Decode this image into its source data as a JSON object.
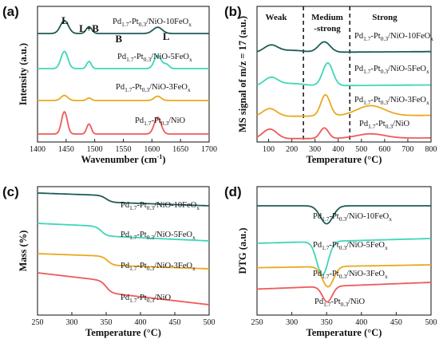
{
  "chart_data": [
    {
      "panel_label": "(a)",
      "type": "line",
      "xlabel": "Wavenumber (cm",
      "xlabel_sup": "-1",
      "xlabel_tail": ")",
      "ylabel": "Intensity (a.u.)",
      "xlim": [
        1400,
        1700
      ],
      "xticks": [
        "1400",
        "1450",
        "1500",
        "1550",
        "1600",
        "1650",
        "1700"
      ],
      "band_labels": [
        {
          "text": "L",
          "x": 1448
        },
        {
          "text": "L+B",
          "x": 1490
        },
        {
          "text": "B",
          "x": 1542
        },
        {
          "text": "L",
          "x": 1625
        }
      ],
      "series": [
        {
          "name": "Pd1.7-Pt0.3/NiO-10FeOx",
          "label_main": "Pd",
          "label_parts": [
            "Pd",
            "1.7",
            "-Pt",
            "0.3",
            "/NiO-10FeO",
            "x"
          ],
          "color": "#1d5c57",
          "peaks": [
            [
              1447,
              0.62,
              7
            ],
            [
              1490,
              0.32,
              5
            ],
            [
              1610,
              0.3,
              8
            ]
          ]
        },
        {
          "name": "Pd1.7-Pt0.3/NiO-5FeOx",
          "label_parts": [
            "Pd",
            "1.7",
            "-Pt",
            "0.3",
            "/NiO-5FeO",
            "x"
          ],
          "color": "#3fd6b8",
          "peaks": [
            [
              1447,
              0.72,
              6
            ],
            [
              1490,
              0.3,
              4
            ],
            [
              1610,
              0.55,
              6
            ],
            [
              1625,
              0.18,
              5
            ]
          ]
        },
        {
          "name": "Pd1.7-Pt0.3/NiO-3FeOx",
          "label_parts": [
            "Pd",
            "1.7",
            "-Pt",
            "0.3",
            "/NiO-3FeO",
            "x"
          ],
          "color": "#e9a91e",
          "peaks": [
            [
              1447,
              0.35,
              6
            ],
            [
              1490,
              0.18,
              4
            ],
            [
              1610,
              0.3,
              6
            ]
          ]
        },
        {
          "name": "Pd1.7-Pt0.3/NiO",
          "label_parts": [
            "Pd",
            "1.7",
            "-Pt",
            "0.3",
            "/NiO",
            ""
          ],
          "color": "#ef5a5a",
          "peaks": [
            [
              1447,
              1.0,
              5
            ],
            [
              1490,
              0.45,
              4
            ],
            [
              1610,
              0.75,
              6
            ]
          ]
        }
      ]
    },
    {
      "panel_label": "(b)",
      "type": "line",
      "xlabel": "Temperature (°C)",
      "ylabel": "MS signal of m/z = 17 (a.u.)",
      "xlim": [
        50,
        800
      ],
      "xticks": [
        "100",
        "200",
        "300",
        "400",
        "500",
        "600",
        "700",
        "800"
      ],
      "regions": [
        "Weak",
        "Medium",
        "-strong",
        "Strong"
      ],
      "region_bounds": [
        250,
        450
      ],
      "series": [
        {
          "name": "Pd1.7-Pt0.3/NiO-10FeOx",
          "label_parts": [
            "Pd",
            "1.7",
            "-Pt",
            "0.3",
            "/NiO-10FeO",
            "x"
          ],
          "color": "#1d5c57",
          "peaks": [
            [
              110,
              0.35,
              30
            ],
            [
              340,
              0.5,
              25
            ],
            [
              200,
              0.1,
              50
            ]
          ]
        },
        {
          "name": "Pd1.7-Pt0.3/NiO-5FeOx",
          "label_parts": [
            "Pd",
            "1.7",
            "-Pt",
            "0.3",
            "/NiO-5FeO",
            "x"
          ],
          "color": "#3fd6b8",
          "peaks": [
            [
              110,
              0.35,
              30
            ],
            [
              355,
              0.95,
              22
            ],
            [
              200,
              0.1,
              50
            ]
          ]
        },
        {
          "name": "Pd1.7-Pt0.3/NiO-3FeOx",
          "label_parts": [
            "Pd",
            "1.7",
            "-Pt",
            "0.3",
            "/NiO-3FeO",
            "x"
          ],
          "color": "#e9a91e",
          "peaks": [
            [
              105,
              0.35,
              30
            ],
            [
              345,
              0.95,
              20
            ],
            [
              540,
              0.45,
              60
            ]
          ]
        },
        {
          "name": "Pd1.7-Pt0.3/NiO",
          "label_parts": [
            "Pd",
            "1.7",
            "-Pt",
            "0.3",
            "/NiO",
            ""
          ],
          "color": "#ef5a5a",
          "peaks": [
            [
              105,
              0.55,
              30
            ],
            [
              340,
              0.6,
              18
            ],
            [
              540,
              0.25,
              60
            ]
          ]
        }
      ]
    },
    {
      "panel_label": "(c)",
      "type": "line",
      "xlabel": "Temperature (°C)",
      "ylabel": "Mass (%)",
      "xlim": [
        250,
        500
      ],
      "xticks": [
        "250",
        "300",
        "350",
        "400",
        "450",
        "500"
      ],
      "series": [
        {
          "name": "Pd1.7-Pt0.3/NiO-10FeOx",
          "label_parts": [
            "Pd",
            "1.7",
            "-Pt",
            "0.3",
            "/NiO-10FeO",
            "x"
          ],
          "color": "#1d5c57",
          "start": 1.0,
          "slope": 0.22,
          "step": 0.25,
          "step_at": 350
        },
        {
          "name": "Pd1.7-Pt0.3/NiO-5FeOx",
          "label_parts": [
            "Pd",
            "1.7",
            "-Pt",
            "0.3",
            "/NiO-5FeO",
            "x"
          ],
          "color": "#3fd6b8",
          "start": 1.0,
          "slope": 0.25,
          "step": 0.3,
          "step_at": 343
        },
        {
          "name": "Pd1.7-Pt0.3/NiO-3FeOx",
          "label_parts": [
            "Pd",
            "1.7",
            "-Pt",
            "0.3",
            "/NiO-3FeO",
            "x"
          ],
          "color": "#e9a91e",
          "start": 1.0,
          "slope": 0.2,
          "step": 0.3,
          "step_at": 352
        },
        {
          "name": "Pd1.7-Pt0.3/NiO",
          "label_parts": [
            "Pd",
            "1.7",
            "-Pt",
            "0.3",
            "/NiO",
            ""
          ],
          "color": "#ef5a5a",
          "start": 1.0,
          "slope": 0.5,
          "step": 0.3,
          "step_at": 350
        }
      ]
    },
    {
      "panel_label": "(d)",
      "type": "line",
      "xlabel": "Temperature (°C)",
      "ylabel": "DTG (a.u.)",
      "xlim": [
        250,
        500
      ],
      "xticks": [
        "250",
        "300",
        "350",
        "400",
        "450",
        "500"
      ],
      "series": [
        {
          "name": "Pd1.7-Pt0.3/NiO-10FeOx",
          "label_parts": [
            "Pd",
            "1.7",
            "-Pt",
            "0.3",
            "/NiO-10FeO",
            "x"
          ],
          "color": "#1d5c57",
          "dip_at": 350,
          "dip": 0.75,
          "width": 9
        },
        {
          "name": "Pd1.7-Pt0.3/NiO-5FeOx",
          "label_parts": [
            "Pd",
            "1.7",
            "-Pt",
            "0.3",
            "/NiO-5FeO",
            "x"
          ],
          "color": "#3fd6b8",
          "dip_at": 344,
          "dip": 1.0,
          "width": 8
        },
        {
          "name": "Pd1.7-Pt0.3/NiO-3FeOx",
          "label_parts": [
            "Pd",
            "1.7",
            "-Pt",
            "0.3",
            "/NiO-3FeO",
            "x"
          ],
          "color": "#e9a91e",
          "dip_at": 352,
          "dip": 0.75,
          "width": 8
        },
        {
          "name": "Pd1.7-Pt0.3/NiO",
          "label_parts": [
            "Pd",
            "1.7",
            "-Pt",
            "0.3",
            "/NiO",
            ""
          ],
          "color": "#ef5a5a",
          "dip_at": 351,
          "dip": 0.75,
          "width": 7
        }
      ]
    }
  ]
}
